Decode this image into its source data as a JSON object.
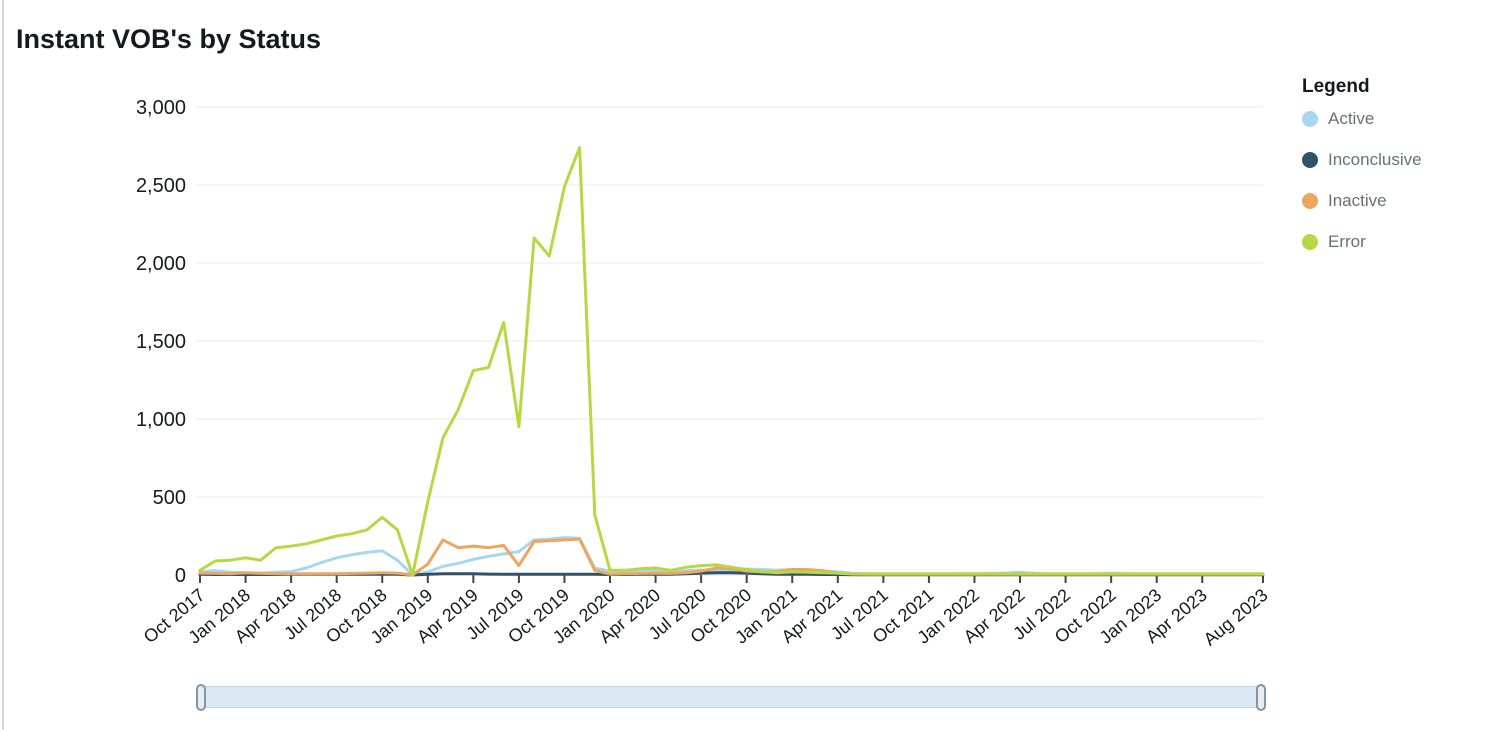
{
  "page": {
    "title": "Instant VOB's by Status"
  },
  "legend": {
    "title": "Legend",
    "items": [
      {
        "label": "Active",
        "color": "#a6d7ef"
      },
      {
        "label": "Inconclusive",
        "color": "#2e5269"
      },
      {
        "label": "Inactive",
        "color": "#eda661"
      },
      {
        "label": "Error",
        "color": "#b6d844"
      }
    ]
  },
  "y_axis": {
    "tick_labels": [
      "0",
      "500",
      "1,000",
      "1,500",
      "2,000",
      "2,500",
      "3,000"
    ]
  },
  "x_axis": {
    "tick_labels": [
      "Oct 2017",
      "Jan 2018",
      "Apr 2018",
      "Jul 2018",
      "Oct 2018",
      "Jan 2019",
      "Apr 2019",
      "Jul 2019",
      "Oct 2019",
      "Jan 2020",
      "Apr 2020",
      "Jul 2020",
      "Oct 2020",
      "Jan 2021",
      "Apr 2021",
      "Jul 2021",
      "Oct 2021",
      "Jan 2022",
      "Apr 2022",
      "Jul 2022",
      "Oct 2022",
      "Jan 2023",
      "Apr 2023",
      "Aug 2023"
    ]
  },
  "time_slider": {
    "track_color": "#dbe9f5",
    "track_border_color": "#c3d6e6",
    "handle_color": "#e7ecf2",
    "handle_border_color": "#8294a7"
  },
  "chart_data": {
    "type": "line",
    "title": "Instant VOB's by Status",
    "xlabel": "",
    "ylabel": "",
    "ylim": [
      0,
      3000
    ],
    "grid": true,
    "legend_position": "right",
    "y_ticks": [
      0,
      500,
      1000,
      1500,
      2000,
      2500,
      3000
    ],
    "y_tick_labels": [
      "0",
      "500",
      "1,000",
      "1,500",
      "2,000",
      "2,500",
      "3,000"
    ],
    "x_tick_labels": [
      "Oct 2017",
      "Jan 2018",
      "Apr 2018",
      "Jul 2018",
      "Oct 2018",
      "Jan 2019",
      "Apr 2019",
      "Jul 2019",
      "Oct 2019",
      "Jan 2020",
      "Apr 2020",
      "Jul 2020",
      "Oct 2020",
      "Jan 2021",
      "Apr 2021",
      "Jul 2021",
      "Oct 2021",
      "Jan 2022",
      "Apr 2022",
      "Jul 2022",
      "Oct 2022",
      "Jan 2023",
      "Apr 2023",
      "Aug 2023"
    ],
    "x": [
      "Oct 2017",
      "Nov 2017",
      "Dec 2017",
      "Jan 2018",
      "Feb 2018",
      "Mar 2018",
      "Apr 2018",
      "May 2018",
      "Jun 2018",
      "Jul 2018",
      "Aug 2018",
      "Sep 2018",
      "Oct 2018",
      "Nov 2018",
      "Dec 2018",
      "Jan 2019",
      "Feb 2019",
      "Mar 2019",
      "Apr 2019",
      "May 2019",
      "Jun 2019",
      "Jul 2019",
      "Aug 2019",
      "Sep 2019",
      "Oct 2019",
      "Nov 2019",
      "Dec 2019",
      "Jan 2020",
      "Feb 2020",
      "Mar 2020",
      "Apr 2020",
      "May 2020",
      "Jun 2020",
      "Jul 2020",
      "Aug 2020",
      "Sep 2020",
      "Oct 2020",
      "Nov 2020",
      "Dec 2020",
      "Jan 2021",
      "Feb 2021",
      "Mar 2021",
      "Apr 2021",
      "May 2021",
      "Jun 2021",
      "Jul 2021",
      "Aug 2021",
      "Sep 2021",
      "Oct 2021",
      "Nov 2021",
      "Dec 2021",
      "Jan 2022",
      "Feb 2022",
      "Mar 2022",
      "Apr 2022",
      "May 2022",
      "Jun 2022",
      "Jul 2022",
      "Aug 2022",
      "Sep 2022",
      "Oct 2022",
      "Nov 2022",
      "Dec 2022",
      "Jan 2023",
      "Feb 2023",
      "Mar 2023",
      "Apr 2023",
      "May 2023",
      "Jun 2023",
      "Jul 2023",
      "Aug 2023"
    ],
    "series": [
      {
        "name": "Active",
        "color": "#a6d7ef",
        "values": [
          20,
          28,
          18,
          15,
          12,
          18,
          22,
          45,
          80,
          110,
          130,
          145,
          155,
          95,
          0,
          20,
          55,
          75,
          100,
          120,
          135,
          150,
          225,
          230,
          240,
          235,
          45,
          25,
          25,
          30,
          30,
          25,
          28,
          32,
          30,
          28,
          38,
          35,
          30,
          35,
          30,
          25,
          20,
          10,
          8,
          6,
          6,
          6,
          6,
          6,
          8,
          8,
          10,
          12,
          18,
          10,
          6,
          6,
          6,
          8,
          12,
          8,
          6,
          6,
          6,
          6,
          6,
          6,
          6,
          6,
          6
        ]
      },
      {
        "name": "Inconclusive",
        "color": "#2e5269",
        "values": [
          5,
          3,
          3,
          3,
          3,
          3,
          5,
          5,
          5,
          5,
          5,
          5,
          5,
          5,
          0,
          5,
          8,
          8,
          8,
          6,
          5,
          5,
          5,
          5,
          5,
          5,
          5,
          3,
          3,
          5,
          5,
          5,
          8,
          12,
          15,
          15,
          12,
          8,
          5,
          5,
          5,
          3,
          3,
          2,
          2,
          2,
          2,
          2,
          2,
          2,
          2,
          2,
          2,
          2,
          2,
          2,
          2,
          2,
          2,
          2,
          2,
          2,
          2,
          2,
          2,
          2,
          2,
          2,
          2,
          2,
          2
        ]
      },
      {
        "name": "Inactive",
        "color": "#eda661",
        "values": [
          12,
          10,
          8,
          15,
          10,
          8,
          8,
          8,
          8,
          8,
          10,
          12,
          15,
          12,
          0,
          70,
          225,
          175,
          185,
          175,
          190,
          60,
          215,
          220,
          225,
          230,
          30,
          5,
          8,
          10,
          12,
          10,
          15,
          25,
          45,
          40,
          25,
          20,
          22,
          35,
          35,
          28,
          12,
          6,
          5,
          5,
          5,
          5,
          5,
          5,
          5,
          5,
          5,
          5,
          5,
          5,
          5,
          5,
          5,
          5,
          5,
          5,
          5,
          5,
          5,
          5,
          5,
          5,
          5,
          5,
          5
        ]
      },
      {
        "name": "Error",
        "color": "#b6d844",
        "values": [
          30,
          90,
          95,
          110,
          95,
          175,
          185,
          200,
          225,
          250,
          265,
          290,
          370,
          290,
          0,
          470,
          880,
          1060,
          1310,
          1330,
          1620,
          950,
          2160,
          2045,
          2490,
          2740,
          385,
          30,
          30,
          40,
          45,
          30,
          50,
          60,
          65,
          50,
          35,
          20,
          15,
          20,
          18,
          15,
          12,
          8,
          8,
          8,
          8,
          8,
          8,
          8,
          8,
          8,
          8,
          8,
          8,
          8,
          8,
          8,
          8,
          8,
          8,
          8,
          8,
          8,
          8,
          8,
          8,
          8,
          8,
          8,
          8
        ]
      }
    ]
  }
}
